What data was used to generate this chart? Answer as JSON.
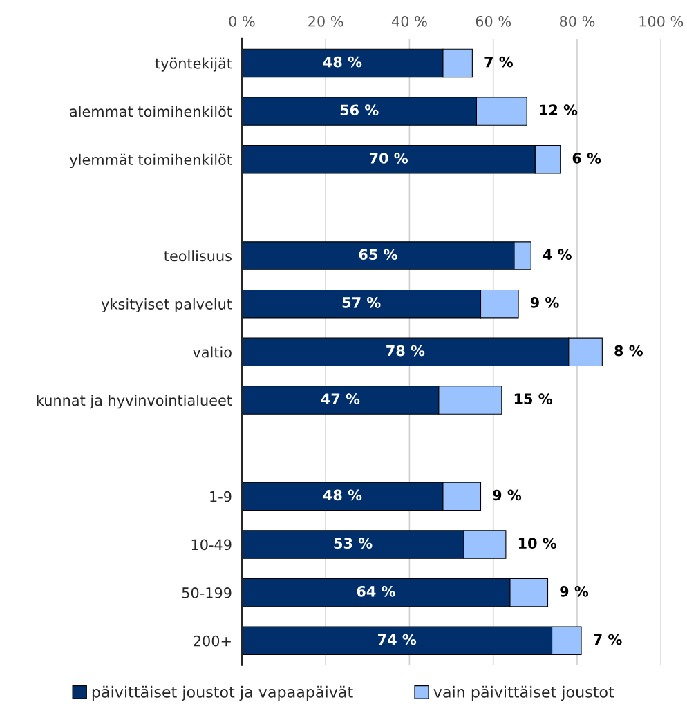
{
  "chart_data": {
    "type": "bar",
    "orientation": "horizontal",
    "stacked": true,
    "categories": [
      "työntekijät",
      "alemmat toimihenkilöt",
      "ylemmät toimihenkilöt",
      null,
      "teollisuus",
      "yksityiset palvelut",
      "valtio",
      "kunnat ja hyvinvointialueet",
      null,
      "1-9",
      "10-49",
      "50-199",
      "200+"
    ],
    "series": [
      {
        "name": "päivittäiset joustot ja vapaapäivät",
        "color": "#002f6c",
        "values": [
          48,
          56,
          70,
          null,
          65,
          57,
          78,
          47,
          null,
          48,
          53,
          64,
          74
        ],
        "value_labels": [
          "48 %",
          "56 %",
          "70 %",
          null,
          "65 %",
          "57 %",
          "78 %",
          "47 %",
          null,
          "48 %",
          "53 %",
          "64 %",
          "74 %"
        ]
      },
      {
        "name": "vain päivittäiset joustot",
        "color": "#99c2ff",
        "values": [
          7,
          12,
          6,
          null,
          4,
          9,
          8,
          15,
          null,
          9,
          10,
          9,
          7
        ],
        "value_labels": [
          "7 %",
          "12 %",
          "6 %",
          null,
          "4 %",
          "9 %",
          "8 %",
          "15 %",
          null,
          "9 %",
          "10 %",
          "9 %",
          "7 %"
        ]
      }
    ],
    "xlim": [
      0,
      100
    ],
    "xticks": [
      {
        "value": 0,
        "label": "0 %"
      },
      {
        "value": 20,
        "label": "20 %"
      },
      {
        "value": 40,
        "label": "40 %"
      },
      {
        "value": 60,
        "label": "60 %"
      },
      {
        "value": 80,
        "label": "80 %"
      },
      {
        "value": 100,
        "label": "100 %"
      }
    ],
    "grid": "x",
    "legend": "bottom"
  }
}
